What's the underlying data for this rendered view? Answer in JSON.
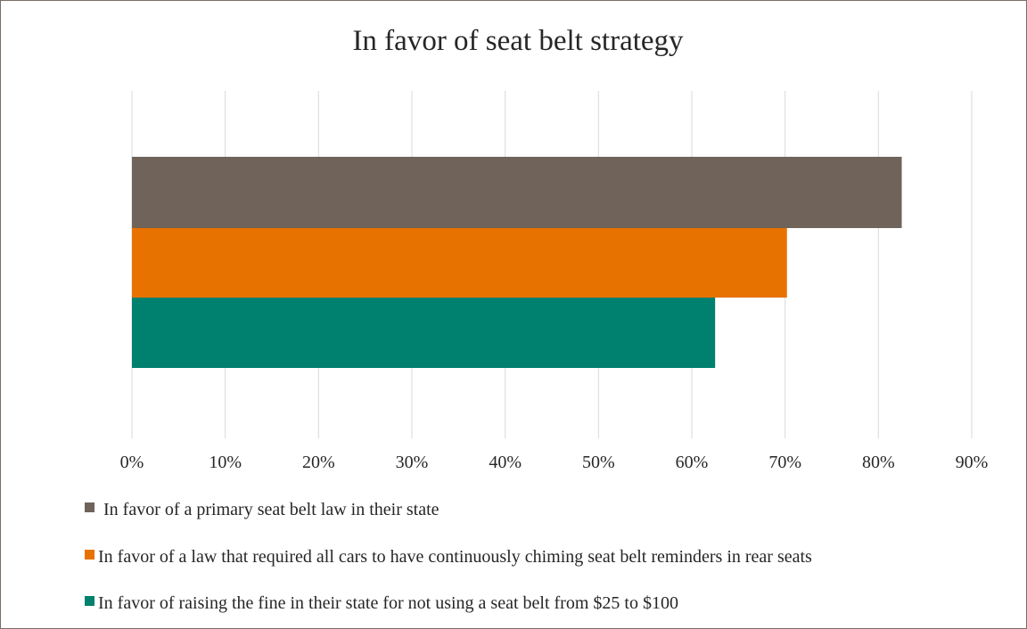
{
  "chart_data": {
    "type": "bar",
    "orientation": "horizontal",
    "title": "In favor of seat belt strategy",
    "xlabel": "",
    "ylabel": "",
    "xlim": [
      0,
      90
    ],
    "ticks": [
      "0%",
      "10%",
      "20%",
      "30%",
      "40%",
      "50%",
      "60%",
      "70%",
      "80%",
      "90%"
    ],
    "grid": true,
    "legend_position": "bottom",
    "series": [
      {
        "name": "In favor of a primary seat belt law in their state",
        "value": 82.5,
        "color": "#70635a"
      },
      {
        "name": "In favor of a law that required all cars to have continuously chiming seat belt reminders in rear seats",
        "value": 70.2,
        "color": "#e87200"
      },
      {
        "name": "In favor of raising the fine in their state for not using a seat belt from $25 to $100",
        "value": 62.5,
        "color": "#00806e"
      }
    ]
  }
}
